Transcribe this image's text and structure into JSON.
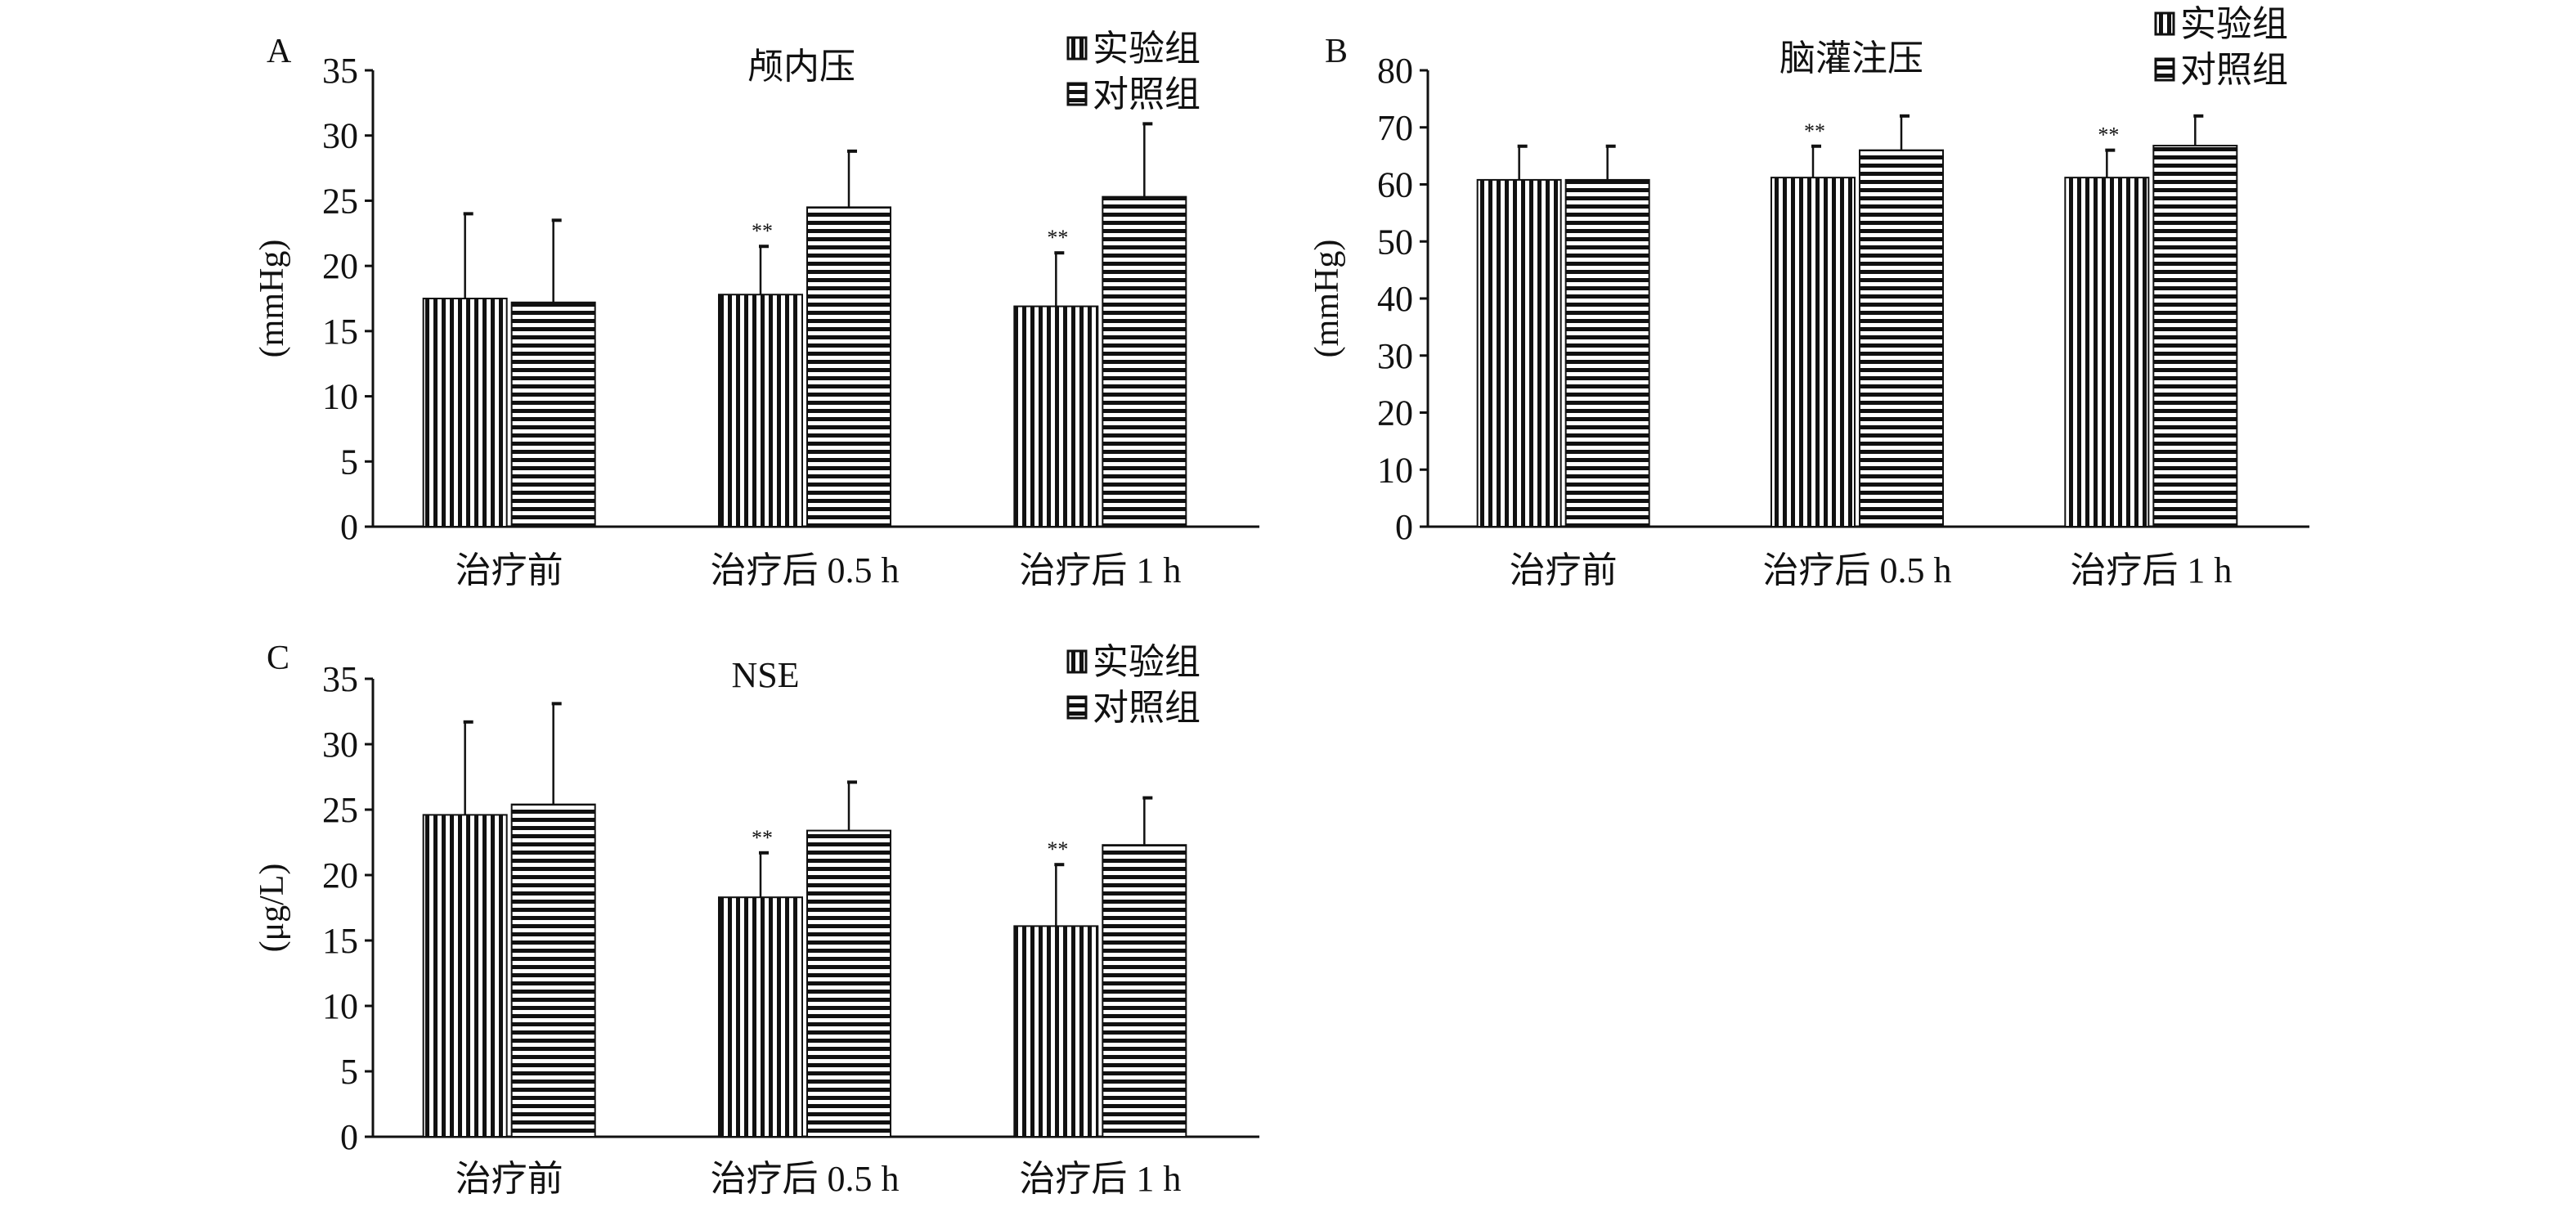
{
  "chart_data": [
    {
      "type": "bar",
      "panel": "A",
      "title": "颅内压",
      "ylabel": "(mmHg)",
      "xlabel": "",
      "ylim": [
        0,
        35
      ],
      "yticks": [
        0,
        5,
        10,
        15,
        20,
        25,
        30,
        35
      ],
      "categories": [
        "治疗前",
        "治疗后 0.5 h",
        "治疗后 1 h"
      ],
      "legend_position": "top-right",
      "series": [
        {
          "name": "实验组",
          "pattern": "vertical-stripes",
          "values": [
            17.5,
            17.8,
            16.9
          ],
          "error_upper": [
            24.0,
            21.5,
            21.0
          ],
          "annotations": [
            "",
            "**",
            "**"
          ]
        },
        {
          "name": "对照组",
          "pattern": "horizontal-stripes",
          "values": [
            17.2,
            24.5,
            25.3
          ],
          "error_upper": [
            23.5,
            28.8,
            30.9
          ],
          "annotations": [
            "",
            "",
            ""
          ]
        }
      ]
    },
    {
      "type": "bar",
      "panel": "B",
      "title": "脑灌注压",
      "ylabel": "(mmHg)",
      "xlabel": "",
      "ylim": [
        0,
        80
      ],
      "yticks": [
        0,
        10,
        20,
        30,
        40,
        50,
        60,
        70,
        80
      ],
      "categories": [
        "治疗前",
        "治疗后 0.5 h",
        "治疗后 1 h"
      ],
      "legend_position": "top-right",
      "series": [
        {
          "name": "实验组",
          "pattern": "vertical-stripes",
          "values": [
            60.8,
            61.2,
            61.2
          ],
          "error_upper": [
            66.7,
            66.7,
            66.0
          ],
          "annotations": [
            "",
            "**",
            "**"
          ]
        },
        {
          "name": "对照组",
          "pattern": "horizontal-stripes",
          "values": [
            60.8,
            66.0,
            66.8
          ],
          "error_upper": [
            66.7,
            72.0,
            72.0
          ],
          "annotations": [
            "",
            "",
            ""
          ]
        }
      ]
    },
    {
      "type": "bar",
      "panel": "C",
      "title": "NSE",
      "ylabel": "(μg/L)",
      "xlabel": "",
      "ylim": [
        0,
        35
      ],
      "yticks": [
        0,
        5,
        10,
        15,
        20,
        25,
        30,
        35
      ],
      "categories": [
        "治疗前",
        "治疗后 0.5 h",
        "治疗后 1 h"
      ],
      "legend_position": "top-right",
      "series": [
        {
          "name": "实验组",
          "pattern": "vertical-stripes",
          "values": [
            24.6,
            18.3,
            16.1
          ],
          "error_upper": [
            31.7,
            21.7,
            20.8
          ],
          "annotations": [
            "",
            "**",
            "**"
          ]
        },
        {
          "name": "对照组",
          "pattern": "horizontal-stripes",
          "values": [
            25.4,
            23.4,
            22.3
          ],
          "error_upper": [
            33.1,
            27.1,
            25.9
          ],
          "annotations": [
            "",
            "",
            ""
          ]
        }
      ]
    }
  ]
}
